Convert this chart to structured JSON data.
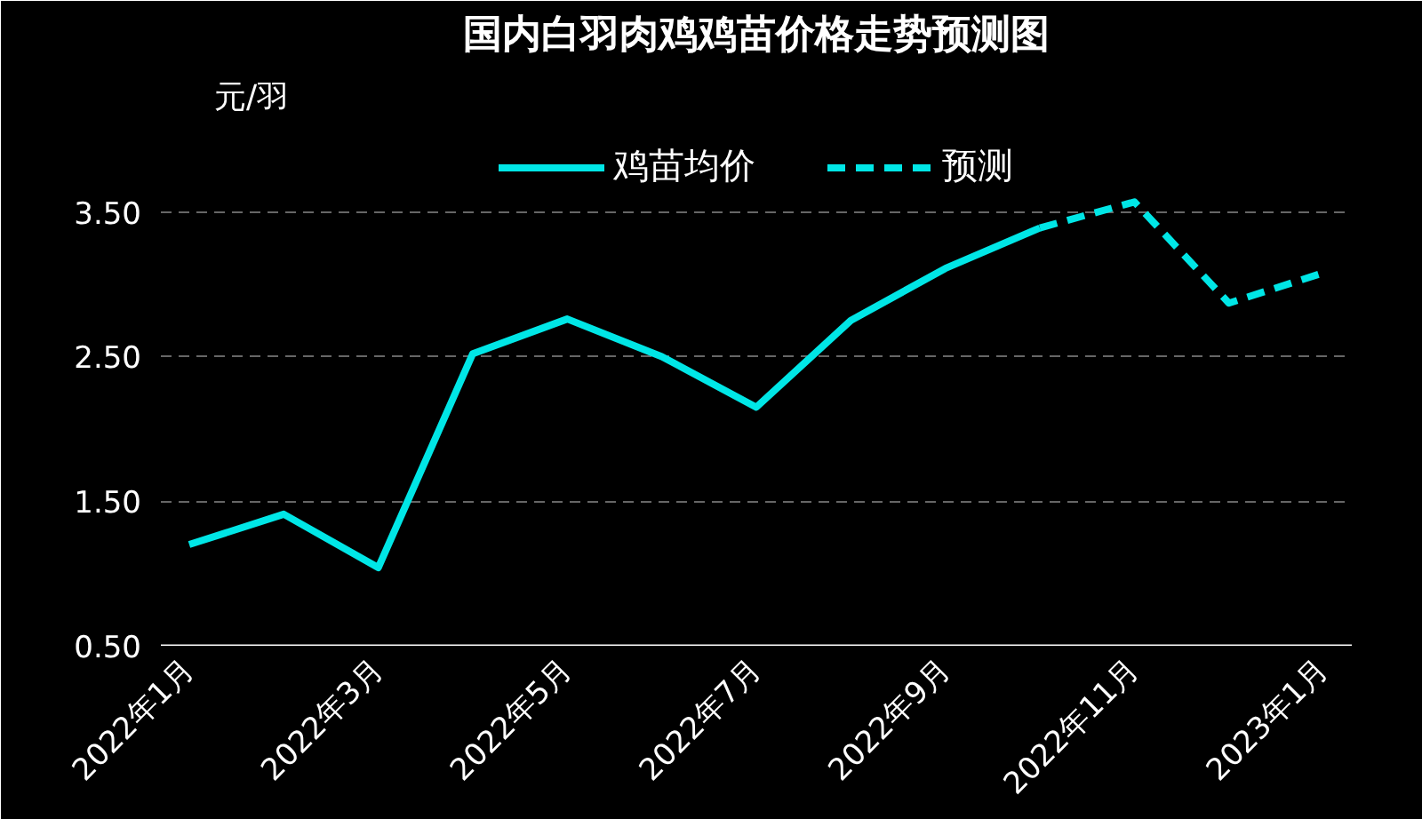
{
  "chart_data": {
    "type": "line",
    "title": "国内白羽肉鸡鸡苗价格走势预测图",
    "ylabel": "元/羽",
    "categories": [
      "2022年1月",
      null,
      "2022年3月",
      null,
      "2022年5月",
      null,
      "2022年7月",
      null,
      "2022年9月",
      null,
      "2022年11月",
      null,
      "2023年1月"
    ],
    "series": [
      {
        "name": "鸡苗均价",
        "color": "#00e6e6",
        "line_style": "solid",
        "values": [
          1.2,
          1.41,
          1.04,
          2.52,
          2.76,
          2.5,
          2.15,
          2.75,
          3.11,
          3.39,
          null,
          null,
          null
        ]
      },
      {
        "name": "预测",
        "color": "#00e6e6",
        "line_style": "dashed",
        "values": [
          null,
          null,
          null,
          null,
          null,
          null,
          null,
          null,
          null,
          3.39,
          3.57,
          2.87,
          3.08
        ]
      }
    ],
    "ylim": [
      0.5,
      4.1
    ],
    "yticks": [
      {
        "value": 0.5,
        "label": "0.50"
      },
      {
        "value": 1.5,
        "label": "1.50"
      },
      {
        "value": 2.5,
        "label": "2.50"
      },
      {
        "value": 3.5,
        "label": "3.50"
      }
    ],
    "grid": "y",
    "legend": "top",
    "marker": "none"
  }
}
